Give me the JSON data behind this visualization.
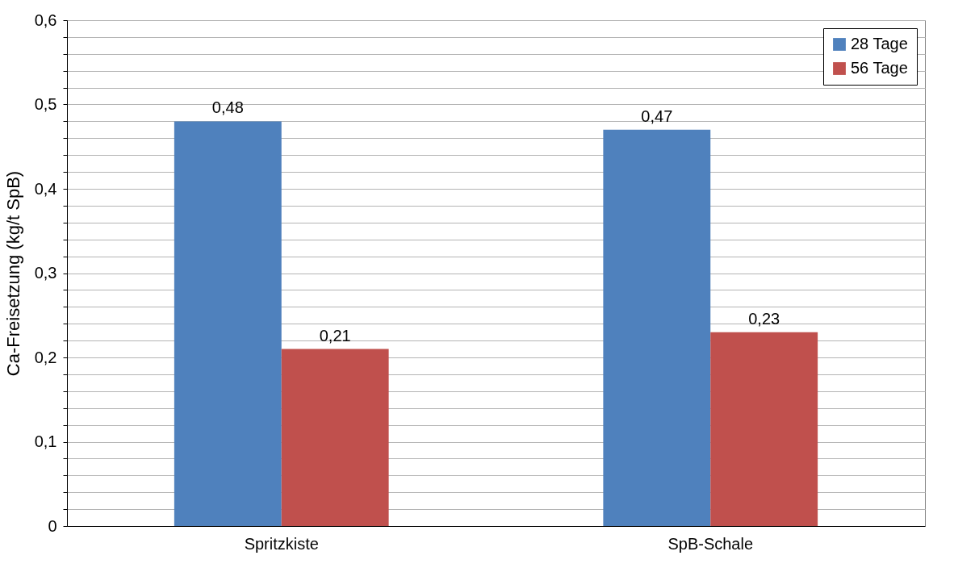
{
  "chart_data": {
    "type": "bar",
    "ylabel": "Ca-Freisetzung (kg/t SpB)",
    "categories": [
      "Spritzkiste",
      "SpB-Schale"
    ],
    "series": [
      {
        "name": "28 Tage",
        "color": "#4f81bd",
        "values": [
          0.48,
          0.47
        ],
        "value_labels": [
          "0,48",
          "0,47"
        ]
      },
      {
        "name": "56 Tage",
        "color": "#c0504d",
        "values": [
          0.21,
          0.23
        ],
        "value_labels": [
          "0,21",
          "0,23"
        ]
      }
    ],
    "ylim": [
      0,
      0.6
    ],
    "yticks": [
      0,
      {
        "value": 0.02,
        "label": null
      },
      {
        "value": 0.04,
        "label": null
      },
      {
        "value": 0.06,
        "label": null
      },
      {
        "value": 0.08,
        "label": null
      },
      {
        "value": 0.1,
        "label": "0,1"
      },
      {
        "value": 0.12,
        "label": null
      },
      {
        "value": 0.14,
        "label": null
      },
      {
        "value": 0.16,
        "label": null
      },
      {
        "value": 0.18,
        "label": null
      },
      {
        "value": 0.2,
        "label": "0,2"
      },
      {
        "value": 0.22,
        "label": null
      },
      {
        "value": 0.24,
        "label": null
      },
      {
        "value": 0.26,
        "label": null
      },
      {
        "value": 0.28,
        "label": null
      },
      {
        "value": 0.3,
        "label": "0,3"
      },
      {
        "value": 0.32,
        "label": null
      },
      {
        "value": 0.34,
        "label": null
      },
      {
        "value": 0.36,
        "label": null
      },
      {
        "value": 0.38,
        "label": null
      },
      {
        "value": 0.4,
        "label": "0,4"
      },
      {
        "value": 0.42,
        "label": null
      },
      {
        "value": 0.44,
        "label": null
      },
      {
        "value": 0.46,
        "label": null
      },
      {
        "value": 0.48,
        "label": null
      },
      {
        "value": 0.5,
        "label": "0,5"
      },
      {
        "value": 0.52,
        "label": null
      },
      {
        "value": 0.54,
        "label": null
      },
      {
        "value": 0.56,
        "label": null
      },
      {
        "value": 0.58,
        "label": null
      },
      {
        "value": 0.6,
        "label": "0,6"
      }
    ],
    "grid": true,
    "legend": "top right"
  }
}
